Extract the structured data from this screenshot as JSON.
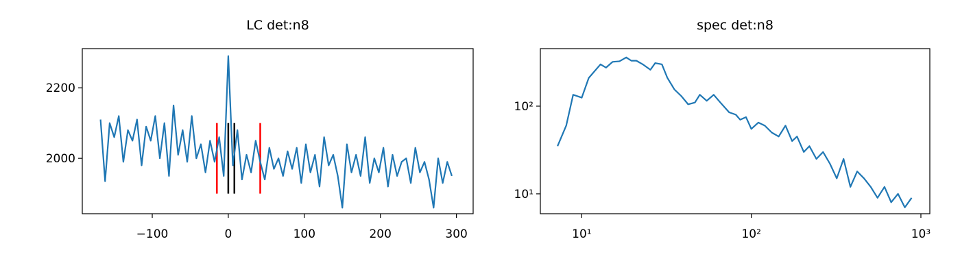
{
  "chart_data": [
    {
      "type": "line",
      "title": "LC det:n8",
      "x": [
        -168,
        -162,
        -156,
        -150,
        -144,
        -138,
        -132,
        -126,
        -120,
        -114,
        -108,
        -102,
        -96,
        -90,
        -84,
        -78,
        -72,
        -66,
        -60,
        -54,
        -48,
        -42,
        -36,
        -30,
        -24,
        -18,
        -12,
        -6,
        0,
        6,
        12,
        18,
        24,
        30,
        36,
        42,
        48,
        54,
        60,
        66,
        72,
        78,
        84,
        90,
        96,
        102,
        108,
        114,
        120,
        126,
        132,
        138,
        144,
        150,
        156,
        162,
        168,
        174,
        180,
        186,
        192,
        198,
        204,
        210,
        216,
        222,
        228,
        234,
        240,
        246,
        252,
        258,
        264,
        270,
        276,
        282,
        288,
        294
      ],
      "series": [
        {
          "color": "#1f77b4",
          "values": [
            2110,
            1935,
            2100,
            2060,
            2120,
            1990,
            2080,
            2050,
            2110,
            1980,
            2090,
            2050,
            2120,
            2000,
            2100,
            1950,
            2150,
            2010,
            2080,
            1990,
            2120,
            2000,
            2040,
            1960,
            2050,
            1990,
            2060,
            1950,
            2290,
            1980,
            2080,
            1940,
            2010,
            1960,
            2050,
            1990,
            1940,
            2030,
            1970,
            2000,
            1950,
            2020,
            1970,
            2030,
            1930,
            2040,
            1960,
            2010,
            1920,
            2060,
            1980,
            2010,
            1950,
            1860,
            2040,
            1960,
            2010,
            1950,
            2060,
            1930,
            2000,
            1960,
            2030,
            1920,
            2010,
            1950,
            1990,
            2000,
            1930,
            2030,
            1960,
            1990,
            1940,
            1860,
            2000,
            1930,
            1990,
            1950
          ]
        }
      ],
      "vlines": [
        {
          "x": -15,
          "ymin": 1900,
          "ymax": 2100,
          "color": "red"
        },
        {
          "x": 0,
          "ymin": 1900,
          "ymax": 2100,
          "color": "black"
        },
        {
          "x": 8,
          "ymin": 1900,
          "ymax": 2100,
          "color": "black"
        },
        {
          "x": 42,
          "ymin": 1900,
          "ymax": 2100,
          "color": "red"
        }
      ],
      "xlim": [
        -192,
        322
      ],
      "ylim": [
        1843,
        2311
      ],
      "xticks": [
        {
          "value": -100,
          "label": "−100"
        },
        0,
        100,
        200,
        300
      ],
      "yticks": [
        2000,
        2200
      ]
    },
    {
      "type": "line",
      "title": "spec det:n8",
      "xscale": "log",
      "yscale": "log",
      "x": [
        7.2,
        8.1,
        8.9,
        10,
        11,
        12.9,
        13.9,
        15.2,
        16.7,
        18.3,
        19.6,
        21,
        22.9,
        25.4,
        27.1,
        29.7,
        32,
        35.2,
        38.7,
        42.4,
        46.5,
        49.7,
        54.6,
        60,
        65.7,
        74,
        81,
        86,
        93,
        100,
        110,
        120,
        132,
        145,
        159,
        174,
        186,
        204,
        220,
        242,
        265,
        291,
        319,
        350,
        384,
        421,
        462,
        506,
        555,
        610,
        668,
        733,
        804,
        882
      ],
      "series": [
        {
          "color": "#1f77b4",
          "values": [
            35,
            60,
            135,
            125,
            210,
            300,
            275,
            320,
            325,
            360,
            330,
            330,
            300,
            260,
            310,
            300,
            210,
            155,
            130,
            105,
            110,
            135,
            115,
            135,
            110,
            85,
            80,
            70,
            75,
            55,
            65,
            60,
            50,
            45,
            60,
            40,
            45,
            30,
            35,
            25,
            30,
            22,
            15,
            25,
            12,
            18,
            15,
            12,
            9,
            12,
            8,
            10,
            7,
            9
          ]
        }
      ],
      "xlim": [
        5.7,
        1129
      ],
      "ylim": [
        5.93,
        453
      ],
      "xticks": [
        {
          "value": 10,
          "label": "10¹"
        },
        {
          "value": 100,
          "label": "10²"
        },
        {
          "value": 1000,
          "label": "10³"
        }
      ],
      "yticks": [
        {
          "value": 10,
          "label": "10¹"
        },
        {
          "value": 100,
          "label": "10²"
        }
      ]
    }
  ]
}
